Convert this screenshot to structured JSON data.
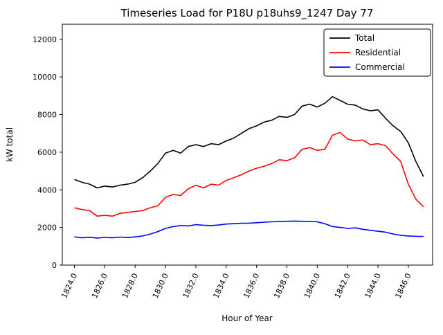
{
  "figure": {
    "background": "#ffffff"
  },
  "chart_data": {
    "type": "line",
    "title": "Timeseries Load for P18U p18uhs9_1247  Day 77",
    "xlabel": "Hour of Year",
    "ylabel": "kW total",
    "xlim": [
      1823.2,
      1847.6
    ],
    "ylim": [
      0,
      12800
    ],
    "xticks": [
      1824,
      1826,
      1828,
      1830,
      1832,
      1834,
      1836,
      1838,
      1840,
      1842,
      1844,
      1846
    ],
    "xtick_labels": [
      "1824.0",
      "1826.0",
      "1828.0",
      "1830.0",
      "1832.0",
      "1834.0",
      "1836.0",
      "1838.0",
      "1840.0",
      "1842.0",
      "1844.0",
      "1846.0"
    ],
    "yticks": [
      0,
      2000,
      4000,
      6000,
      8000,
      10000,
      12000
    ],
    "ytick_labels": [
      "0",
      "2000",
      "4000",
      "6000",
      "8000",
      "10000",
      "12000"
    ],
    "grid": false,
    "legend_position": "upper right",
    "x": [
      1824.0,
      1824.5,
      1825.0,
      1825.5,
      1826.0,
      1826.5,
      1827.0,
      1827.5,
      1828.0,
      1828.5,
      1829.0,
      1829.5,
      1830.0,
      1830.5,
      1831.0,
      1831.5,
      1832.0,
      1832.5,
      1833.0,
      1833.5,
      1834.0,
      1834.5,
      1835.0,
      1835.5,
      1836.0,
      1836.5,
      1837.0,
      1837.5,
      1838.0,
      1838.5,
      1839.0,
      1839.5,
      1840.0,
      1840.5,
      1841.0,
      1841.5,
      1842.0,
      1842.5,
      1843.0,
      1843.5,
      1844.0,
      1844.5,
      1845.0,
      1845.5,
      1846.0,
      1846.5,
      1847.0
    ],
    "series": [
      {
        "name": "Total",
        "color": "#000000",
        "values": [
          4550,
          4400,
          4300,
          4100,
          4200,
          4150,
          4250,
          4300,
          4400,
          4650,
          5000,
          5400,
          5950,
          6100,
          5950,
          6300,
          6400,
          6300,
          6450,
          6400,
          6600,
          6750,
          7000,
          7250,
          7400,
          7600,
          7700,
          7900,
          7850,
          8000,
          8450,
          8550,
          8400,
          8600,
          8950,
          8750,
          8550,
          8500,
          8300,
          8200,
          8250,
          7800,
          7400,
          7100,
          6500,
          5500,
          4700
        ]
      },
      {
        "name": "Residential",
        "color": "#ff0000",
        "values": [
          3050,
          2950,
          2900,
          2600,
          2650,
          2600,
          2750,
          2800,
          2850,
          2900,
          3050,
          3150,
          3600,
          3750,
          3700,
          4050,
          4250,
          4100,
          4300,
          4250,
          4500,
          4650,
          4800,
          5000,
          5150,
          5250,
          5400,
          5600,
          5550,
          5700,
          6150,
          6250,
          6100,
          6150,
          6900,
          7050,
          6700,
          6600,
          6650,
          6400,
          6450,
          6350,
          5900,
          5500,
          4300,
          3500,
          3100
        ]
      },
      {
        "name": "Commercial",
        "color": "#0000ff",
        "values": [
          1500,
          1450,
          1480,
          1440,
          1470,
          1450,
          1490,
          1460,
          1500,
          1550,
          1650,
          1780,
          1950,
          2050,
          2100,
          2080,
          2150,
          2120,
          2100,
          2130,
          2180,
          2200,
          2220,
          2230,
          2250,
          2280,
          2300,
          2320,
          2330,
          2340,
          2330,
          2320,
          2300,
          2200,
          2050,
          2000,
          1950,
          1980,
          1900,
          1850,
          1800,
          1750,
          1650,
          1580,
          1550,
          1530,
          1520
        ]
      }
    ]
  }
}
